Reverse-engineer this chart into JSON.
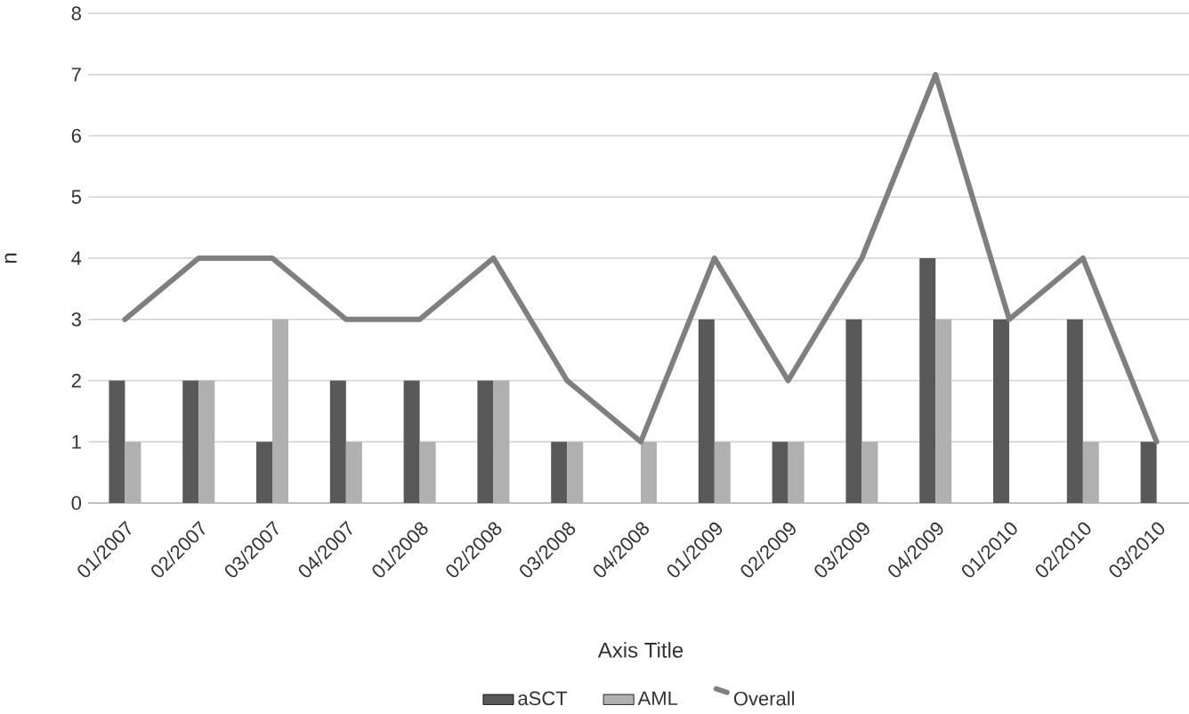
{
  "chart_data": {
    "type": "bar",
    "xlabel": "Axis Title",
    "ylabel": "n",
    "categories": [
      "01/2007",
      "02/2007",
      "03/2007",
      "04/2007",
      "01/2008",
      "02/2008",
      "03/2008",
      "04/2008",
      "01/2009",
      "02/2009",
      "03/2009",
      "04/2009",
      "01/2010",
      "02/2010",
      "03/2010"
    ],
    "series": [
      {
        "name": "aSCT",
        "color": "#595959",
        "values": [
          2,
          2,
          1,
          2,
          2,
          2,
          1,
          0,
          3,
          1,
          3,
          4,
          3,
          3,
          1
        ]
      },
      {
        "name": "AML",
        "color": "#b0b0b0",
        "values": [
          1,
          2,
          3,
          1,
          1,
          2,
          1,
          1,
          1,
          1,
          1,
          3,
          0,
          1,
          0
        ]
      },
      {
        "name": "Overall",
        "color": "#7f7f7f",
        "type": "line",
        "values": [
          3,
          4,
          4,
          3,
          3,
          4,
          2,
          1,
          4,
          2,
          4,
          7,
          3,
          4,
          1
        ]
      }
    ],
    "ylim": [
      0,
      8
    ],
    "yticks": [
      0,
      1,
      2,
      3,
      4,
      5,
      6,
      7,
      8
    ],
    "grid": "y",
    "legend": "bottom"
  }
}
